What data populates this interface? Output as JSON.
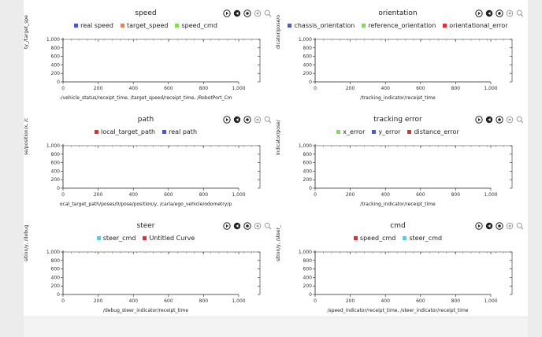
{
  "panels": [
    {
      "title": "speed",
      "legend": [
        {
          "label": "real speed",
          "color": "#4a56d8"
        },
        {
          "label": "target_speed",
          "color": "#f08040"
        },
        {
          "label": "speed_cmd",
          "color": "#7ee050"
        }
      ],
      "ylabel": "ty_/target_spe",
      "xlabel": "-/vehicle_status/receipt_time, /target_speed/receipt_time, /RobotPort_Cm",
      "yticks": [
        "1,000",
        "800",
        "600",
        "400",
        "200",
        "0"
      ],
      "xticks": [
        "0",
        "200",
        "400",
        "600",
        "800",
        "1,000"
      ]
    },
    {
      "title": "orientation",
      "legend": [
        {
          "label": "chassis_orientation",
          "color": "#4a56d8"
        },
        {
          "label": "reference_orientation",
          "color": "#7ee050"
        },
        {
          "label": "orientational_error",
          "color": "#e03030"
        }
      ],
      "ylabel": "dicator/pose/o",
      "xlabel": "/tracking_indicator/receipt_time",
      "yticks": [
        "1,000",
        "800",
        "600",
        "400",
        "200",
        "0"
      ],
      "xticks": [
        "0",
        "200",
        "400",
        "600",
        "800",
        "1,000"
      ]
    },
    {
      "title": "path",
      "legend": [
        {
          "label": "local_target_path",
          "color": "#e03030"
        },
        {
          "label": "real path",
          "color": "#4a56d8"
        }
      ],
      "ylabel": "se/position/x, /c",
      "xlabel": "ocal_target_path/poses/0/pose/position/y, /carla/ego_vehicle/odometry/p",
      "yticks": [
        "1,000",
        "800",
        "600",
        "400",
        "200",
        "0"
      ],
      "xticks": [
        "0",
        "200",
        "400",
        "600",
        "800",
        "1,000"
      ]
    },
    {
      "title": "tracking error",
      "legend": [
        {
          "label": "x_error",
          "color": "#7ee050"
        },
        {
          "label": "y_error",
          "color": "#4a56d8"
        },
        {
          "label": "distance_error",
          "color": "#e03030"
        }
      ],
      "ylabel": "indicator/pose/",
      "xlabel": "/tracking_indicator/receipt_time",
      "yticks": [
        "1,000",
        "800",
        "600",
        "400",
        "200",
        "0"
      ],
      "xticks": [
        "0",
        "200",
        "400",
        "600",
        "800",
        "1,000"
      ]
    },
    {
      "title": "steer",
      "legend": [
        {
          "label": "steer_cmd",
          "color": "#40d8e8"
        },
        {
          "label": "Untitled Curve",
          "color": "#e03030"
        }
      ],
      "ylabel": "sition/y, /debug",
      "xlabel": "/debug_steer_indicator/receipt_time",
      "yticks": [
        "1,000",
        "800",
        "600",
        "400",
        "200",
        "0"
      ],
      "xticks": [
        "0",
        "200",
        "400",
        "600",
        "800",
        "1,000"
      ]
    },
    {
      "title": "cmd",
      "legend": [
        {
          "label": "speed_cmd",
          "color": "#e03030"
        },
        {
          "label": "steer_cmd",
          "color": "#40d8e8"
        }
      ],
      "ylabel": "sition/y, /steer_",
      "xlabel": "/speed_indicator/receipt_time, /steer_indicator/receipt_time",
      "yticks": [
        "1,000",
        "800",
        "600",
        "400",
        "200",
        "0"
      ],
      "xticks": [
        "0",
        "200",
        "400",
        "600",
        "800",
        "1,000"
      ]
    }
  ]
}
